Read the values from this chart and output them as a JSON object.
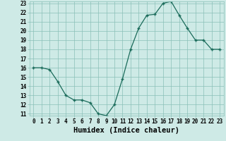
{
  "x": [
    0,
    1,
    2,
    3,
    4,
    5,
    6,
    7,
    8,
    9,
    10,
    11,
    12,
    13,
    14,
    15,
    16,
    17,
    18,
    19,
    20,
    21,
    22,
    23
  ],
  "y": [
    16.0,
    16.0,
    15.8,
    14.5,
    13.0,
    12.5,
    12.5,
    12.2,
    11.0,
    10.8,
    12.0,
    14.8,
    18.0,
    20.3,
    21.7,
    21.8,
    23.0,
    23.2,
    21.7,
    20.3,
    19.0,
    19.0,
    18.0,
    18.0
  ],
  "xlabel": "Humidex (Indice chaleur)",
  "line_color": "#1a6b5a",
  "marker_color": "#1a6b5a",
  "bg_color": "#ceeae6",
  "grid_color": "#8abfb8",
  "ylim": [
    11,
    23
  ],
  "xlim": [
    -0.5,
    23.5
  ],
  "yticks": [
    11,
    12,
    13,
    14,
    15,
    16,
    17,
    18,
    19,
    20,
    21,
    22,
    23
  ],
  "xticks": [
    0,
    1,
    2,
    3,
    4,
    5,
    6,
    7,
    8,
    9,
    10,
    11,
    12,
    13,
    14,
    15,
    16,
    17,
    18,
    19,
    20,
    21,
    22,
    23
  ],
  "tick_labelsize": 5.5,
  "xlabel_fontsize": 7.5
}
